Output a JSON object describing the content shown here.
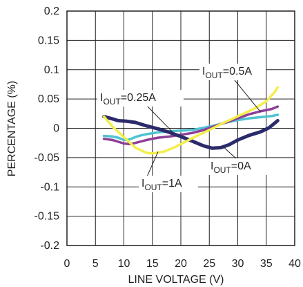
{
  "chart_data": {
    "type": "line",
    "title": "",
    "xlabel": "LINE VOLTAGE (V)",
    "ylabel": "PERCENTAGE (%)",
    "xlim": [
      0,
      40
    ],
    "ylim": [
      -0.2,
      0.2
    ],
    "grid": true,
    "x_ticks": [
      "0",
      "5",
      "10",
      "15",
      "20",
      "25",
      "30",
      "35",
      "40"
    ],
    "y_ticks": [
      "0.2",
      "0.15",
      "0.1",
      "0.05",
      "0",
      "-0.05",
      "-0.1",
      "-0.15",
      "-0.2"
    ],
    "series": [
      {
        "name": "I_OUT=0A",
        "color": "#2b2a6b",
        "points": [
          [
            6.5,
            0.02
          ],
          [
            8,
            0.016
          ],
          [
            9,
            0.013
          ],
          [
            10.5,
            0.012
          ],
          [
            12,
            0.01
          ],
          [
            14,
            0.004
          ],
          [
            16,
            -0.001
          ],
          [
            18,
            -0.007
          ],
          [
            20,
            -0.014
          ],
          [
            22,
            -0.022
          ],
          [
            24,
            -0.03
          ],
          [
            25.5,
            -0.034
          ],
          [
            27,
            -0.033
          ],
          [
            28.5,
            -0.028
          ],
          [
            30,
            -0.02
          ],
          [
            32,
            -0.012
          ],
          [
            34,
            -0.006
          ],
          [
            35.5,
            0.001
          ],
          [
            37,
            0.013
          ]
        ]
      },
      {
        "name": "I_OUT=0.25A",
        "color": "#4fc3d1",
        "points": [
          [
            6.5,
            -0.013
          ],
          [
            8,
            -0.014
          ],
          [
            9,
            -0.016
          ],
          [
            10,
            -0.02
          ],
          [
            11,
            -0.019
          ],
          [
            12,
            -0.015
          ],
          [
            13,
            -0.012
          ],
          [
            14,
            -0.01
          ],
          [
            16,
            -0.007
          ],
          [
            18,
            -0.005
          ],
          [
            20,
            -0.004
          ],
          [
            22,
            -0.003
          ],
          [
            24,
            0.001
          ],
          [
            26,
            0.005
          ],
          [
            28,
            0.01
          ],
          [
            30,
            0.014
          ],
          [
            32,
            0.017
          ],
          [
            34,
            0.019
          ],
          [
            36,
            0.021
          ],
          [
            37,
            0.023
          ]
        ]
      },
      {
        "name": "I_OUT=0.5A",
        "color": "#8e3f97",
        "points": [
          [
            6.5,
            -0.018
          ],
          [
            8,
            -0.02
          ],
          [
            9,
            -0.023
          ],
          [
            10,
            -0.026
          ],
          [
            11,
            -0.027
          ],
          [
            12,
            -0.025
          ],
          [
            14,
            -0.02
          ],
          [
            16,
            -0.016
          ],
          [
            18,
            -0.014
          ],
          [
            20,
            -0.011
          ],
          [
            22,
            -0.008
          ],
          [
            24,
            -0.003
          ],
          [
            26,
            0.004
          ],
          [
            28,
            0.01
          ],
          [
            30,
            0.017
          ],
          [
            32,
            0.024
          ],
          [
            34,
            0.029
          ],
          [
            36,
            0.033
          ],
          [
            37,
            0.037
          ]
        ]
      },
      {
        "name": "I_OUT=1A",
        "color": "#f4ee4a",
        "points": [
          [
            6.5,
            0.02
          ],
          [
            8,
            0.003
          ],
          [
            10,
            -0.015
          ],
          [
            12,
            -0.033
          ],
          [
            14,
            -0.042
          ],
          [
            15,
            -0.043
          ],
          [
            17,
            -0.04
          ],
          [
            19,
            -0.032
          ],
          [
            21,
            -0.022
          ],
          [
            23,
            -0.012
          ],
          [
            25,
            -0.003
          ],
          [
            27,
            0.007
          ],
          [
            29,
            0.016
          ],
          [
            31,
            0.025
          ],
          [
            33,
            0.034
          ],
          [
            35,
            0.046
          ],
          [
            36.5,
            0.062
          ],
          [
            37,
            0.07
          ]
        ]
      }
    ],
    "annotations": [
      {
        "main": "I",
        "sub": "OUT",
        "value": "=0.5A"
      },
      {
        "main": "I",
        "sub": "OUT",
        "value": "=0.25A"
      },
      {
        "main": "I",
        "sub": "OUT",
        "value": "=0A"
      },
      {
        "main": "I",
        "sub": "OUT",
        "value": "=1A"
      }
    ]
  }
}
